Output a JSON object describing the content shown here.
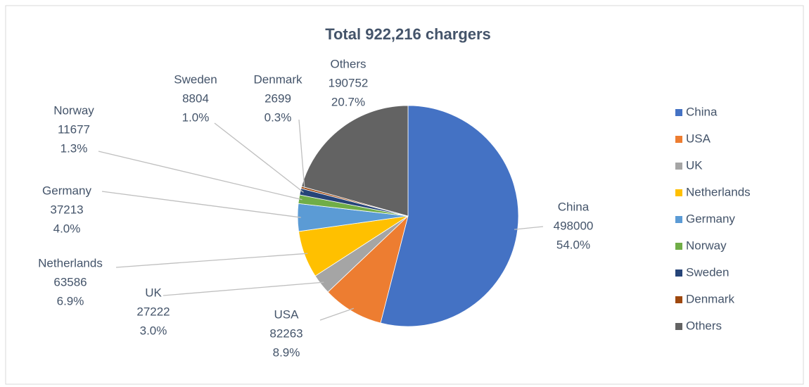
{
  "chart_data": {
    "type": "pie",
    "title": "Total 922,216 chargers",
    "categories": [
      "China",
      "USA",
      "UK",
      "Netherlands",
      "Germany",
      "Norway",
      "Sweden",
      "Denmark",
      "Others"
    ],
    "values": [
      498000,
      82263,
      27222,
      63586,
      37213,
      11677,
      8804,
      2699,
      190752
    ],
    "percent_labels": [
      "54.0%",
      "8.9%",
      "3.0%",
      "6.9%",
      "4.0%",
      "1.3%",
      "1.0%",
      "0.3%",
      "20.7%"
    ],
    "colors": [
      "#4472c4",
      "#ed7d31",
      "#a5a5a5",
      "#ffc000",
      "#5b9bd5",
      "#70ad47",
      "#264478",
      "#9e480e",
      "#636363"
    ],
    "legend": "right"
  }
}
